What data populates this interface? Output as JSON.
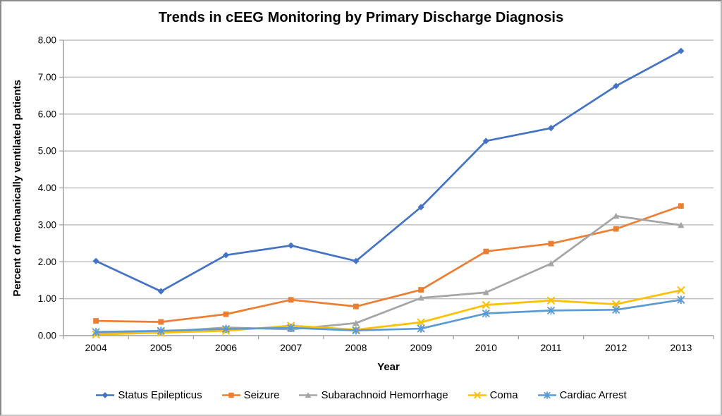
{
  "figure": {
    "background": "#ffffff"
  },
  "chart_data": {
    "type": "line",
    "title": "Trends in cEEG Monitoring by Primary Discharge Diagnosis",
    "xlabel": "Year",
    "ylabel": "Percent of mechanically ventilated patients",
    "categories": [
      "2004",
      "2005",
      "2006",
      "2007",
      "2008",
      "2009",
      "2010",
      "2011",
      "2012",
      "2013"
    ],
    "ylim": [
      0,
      8
    ],
    "ytick_step": 1,
    "yticks": [
      "0.00",
      "1.00",
      "2.00",
      "3.00",
      "4.00",
      "5.00",
      "6.00",
      "7.00",
      "8.00"
    ],
    "grid": "horizontal",
    "legend_position": "bottom",
    "series": [
      {
        "name": "Status Epilepticus",
        "color": "#4472C4",
        "marker": "diamond",
        "values": [
          2.02,
          1.2,
          2.18,
          2.44,
          2.02,
          3.48,
          5.27,
          5.62,
          6.76,
          7.71
        ]
      },
      {
        "name": "Seizure",
        "color": "#ED7D31",
        "marker": "square",
        "values": [
          0.4,
          0.37,
          0.58,
          0.97,
          0.79,
          1.24,
          2.28,
          2.49,
          2.89,
          3.51
        ]
      },
      {
        "name": "Subarachnoid Hemorrhage",
        "color": "#A5A5A5",
        "marker": "triangle",
        "values": [
          0.06,
          0.1,
          0.22,
          0.17,
          0.34,
          1.02,
          1.17,
          1.95,
          3.24,
          2.99
        ]
      },
      {
        "name": "Coma",
        "color": "#FFC000",
        "marker": "x",
        "values": [
          0.03,
          0.08,
          0.13,
          0.27,
          0.16,
          0.36,
          0.83,
          0.95,
          0.85,
          1.23
        ]
      },
      {
        "name": "Cardiac Arrest",
        "color": "#5B9BD5",
        "marker": "asterisk",
        "values": [
          0.1,
          0.13,
          0.18,
          0.21,
          0.14,
          0.19,
          0.6,
          0.68,
          0.7,
          0.97
        ]
      }
    ]
  }
}
